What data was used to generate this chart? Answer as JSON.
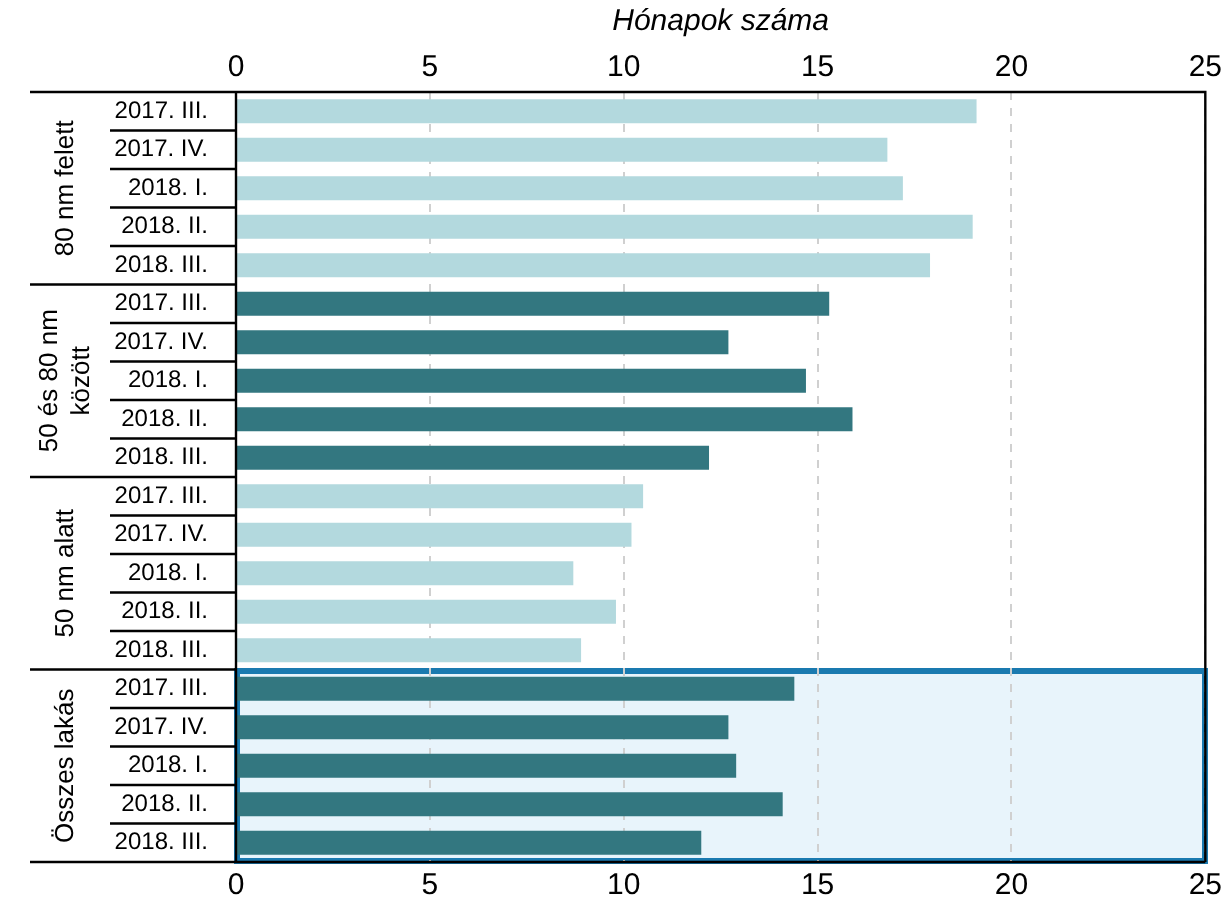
{
  "chart_data": {
    "type": "bar",
    "orientation": "horizontal",
    "x2label": "Hónapok száma",
    "categories": [
      "2017. III.",
      "2017. IV.",
      "2018. I.",
      "2018. II.",
      "2018. III.",
      "2017. III.",
      "2017. IV.",
      "2018. I.",
      "2018. II.",
      "2018. III.",
      "2017. III.",
      "2017. IV.",
      "2018. I.",
      "2018. II.",
      "2018. III.",
      "2017. III.",
      "2017. IV.",
      "2018. I.",
      "2018. II.",
      "2018. III."
    ],
    "values": [
      19.1,
      16.8,
      17.2,
      19.0,
      17.9,
      15.3,
      12.7,
      14.7,
      15.9,
      12.2,
      10.5,
      10.2,
      8.7,
      9.8,
      8.9,
      14.4,
      12.7,
      12.9,
      14.1,
      12.0
    ],
    "colors": [
      "#b3d9de",
      "#b3d9de",
      "#b3d9de",
      "#b3d9de",
      "#b3d9de",
      "#337780",
      "#337780",
      "#337780",
      "#337780",
      "#337780",
      "#b3d9de",
      "#b3d9de",
      "#b3d9de",
      "#b3d9de",
      "#b3d9de",
      "#337780",
      "#337780",
      "#337780",
      "#337780",
      "#337780"
    ],
    "annotations": [
      "80 nm felett",
      "50 és 80 nm\nközött",
      "50 nm alatt",
      "Összes lakás"
    ],
    "xlim": [
      0,
      25
    ],
    "xticks": [
      0,
      5,
      10,
      15,
      20,
      25
    ],
    "x2lim": [
      0,
      25
    ],
    "x2ticks": [
      0,
      5,
      10,
      15,
      20,
      25
    ],
    "grid": "x",
    "legend": false
  }
}
